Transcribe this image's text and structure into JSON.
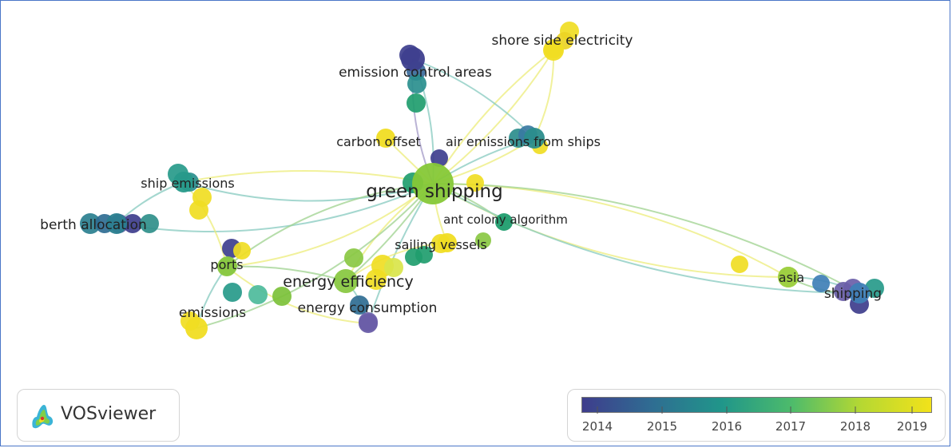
{
  "app": {
    "name": "VOSviewer",
    "logo_icon": "vosviewer-logo-icon"
  },
  "colorbar": {
    "colors": [
      "#3e3d8c",
      "#2f6d92",
      "#20968a",
      "#4dbb6b",
      "#b6d832",
      "#f2e21a"
    ],
    "years": [
      "2014",
      "2015",
      "2016",
      "2017",
      "2018",
      "2019"
    ]
  },
  "network": {
    "edge_colors": {
      "yellow": "#ecec7a",
      "green": "#9ed18e",
      "teal": "#86c9bf",
      "purple": "#a39ac7"
    },
    "terms": [
      {
        "id": "green_shipping",
        "label": "green shipping",
        "color": "#86c837"
      },
      {
        "id": "shore_side_electricity",
        "label": "shore side electricity",
        "color": "#f0dd23"
      },
      {
        "id": "emission_control_areas",
        "label": "emission control areas",
        "color": "#3e3f8e"
      },
      {
        "id": "carbon_offset",
        "label": "carbon offset",
        "color": "#f0dd23"
      },
      {
        "id": "air_emissions_from_ships",
        "label": "air emissions from ships",
        "color": "#2b8d8c"
      },
      {
        "id": "ship_emissions",
        "label": "ship emissions",
        "color": "#279a8a"
      },
      {
        "id": "berth_allocation",
        "label": "berth allocation",
        "color": "#2a7f8f"
      },
      {
        "id": "ant_colony_algorithm",
        "label": "ant colony algorithm",
        "color": "#1f9d6e"
      },
      {
        "id": "sailing_vessels",
        "label": "sailing vessels",
        "color": "#f0dd23"
      },
      {
        "id": "ports",
        "label": "ports",
        "color": "#8ac843"
      },
      {
        "id": "energy_efficiency",
        "label": "energy efficiency",
        "color": "#8ac843"
      },
      {
        "id": "energy_consumption",
        "label": "energy consumption",
        "color": "#6a5ea8"
      },
      {
        "id": "emissions",
        "label": "emissions",
        "color": "#f0dd23"
      },
      {
        "id": "asia",
        "label": "asia",
        "color": "#9ed042"
      },
      {
        "id": "shipping",
        "label": "shipping",
        "color": "#3f7fb6"
      }
    ]
  }
}
